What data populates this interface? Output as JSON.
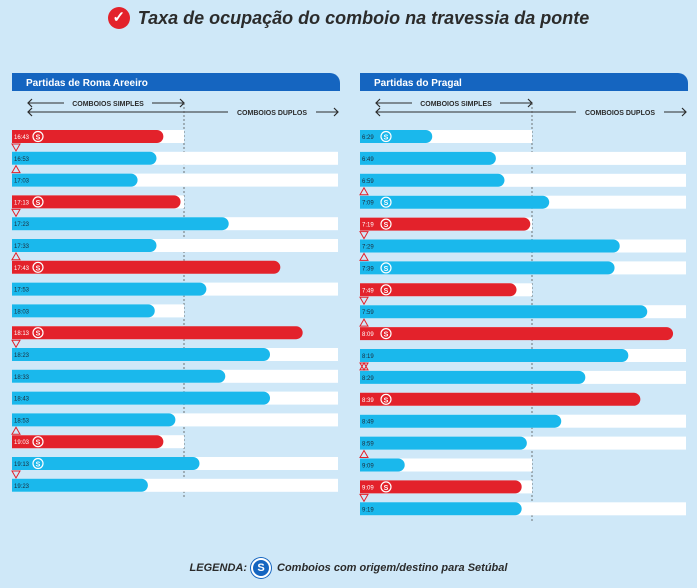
{
  "title": "Taxa de ocupação do comboio na travessia da ponte",
  "legend": {
    "label": "LEGENDA:",
    "text": "Comboios com origem/destino para Setúbal"
  },
  "colors": {
    "background": "#cfe8f8",
    "header": "#1565c0",
    "cyan": "#1ab8ec",
    "red": "#e3222b",
    "track": "#ffffff"
  },
  "chart_data": [
    {
      "type": "bar",
      "title": "Partidas de Roma Areeiro",
      "annotations": {
        "simple": "COMBOIOS SIMPLES",
        "double": "COMBOIOS DUPLOS"
      },
      "categories": [
        "16:43",
        "16:53",
        "17:03",
        "17:13",
        "17:23",
        "17:33",
        "17:43",
        "17:53",
        "18:03",
        "18:13",
        "18:23",
        "18:33",
        "18:43",
        "18:53",
        "19:03",
        "19:13",
        "19:23"
      ],
      "values": [
        0.88,
        0.84,
        0.73,
        0.98,
        1.26,
        0.84,
        1.56,
        1.13,
        0.83,
        1.69,
        1.5,
        1.24,
        1.5,
        0.95,
        0.88,
        1.09,
        0.79
      ],
      "capacity": [
        1,
        2,
        2,
        1,
        2,
        2,
        1,
        2,
        1,
        1,
        2,
        2,
        2,
        2,
        1,
        2,
        2
      ],
      "overload": [
        true,
        false,
        false,
        true,
        false,
        false,
        true,
        false,
        false,
        true,
        false,
        false,
        false,
        false,
        true,
        false,
        false
      ],
      "setubal": [
        true,
        false,
        false,
        true,
        false,
        false,
        true,
        false,
        false,
        true,
        false,
        false,
        false,
        false,
        true,
        true,
        false
      ],
      "arrow_up": [
        false,
        false,
        true,
        false,
        false,
        false,
        true,
        false,
        false,
        false,
        false,
        false,
        false,
        false,
        true,
        false,
        false
      ],
      "arrow_down": [
        true,
        false,
        false,
        true,
        false,
        false,
        false,
        false,
        false,
        true,
        false,
        false,
        false,
        false,
        false,
        true,
        false
      ],
      "xlim": [
        0,
        2
      ],
      "simple_capacity": 1
    },
    {
      "type": "bar",
      "title": "Partidas do Pragal",
      "annotations": {
        "simple": "COMBOIOS SIMPLES",
        "double": "COMBOIOS DUPLOS"
      },
      "categories": [
        "6:29",
        "6:49",
        "6:59",
        "7:09",
        "7:19",
        "7:29",
        "7:39",
        "7:49",
        "7:59",
        "8:09",
        "8:19",
        "8:29",
        "8:39",
        "8:49",
        "8:59",
        "9:09",
        "9:09",
        "9:19"
      ],
      "values": [
        0.42,
        0.79,
        0.84,
        1.1,
        0.99,
        1.51,
        1.48,
        0.91,
        1.67,
        1.82,
        1.56,
        1.31,
        1.63,
        1.17,
        0.97,
        0.26,
        0.94,
        0.94
      ],
      "capacity": [
        1,
        2,
        2,
        2,
        1,
        2,
        2,
        1,
        2,
        1,
        2,
        2,
        1,
        2,
        2,
        1,
        1,
        2
      ],
      "overload": [
        false,
        false,
        false,
        false,
        true,
        false,
        false,
        true,
        false,
        true,
        false,
        false,
        true,
        false,
        false,
        false,
        true,
        false
      ],
      "setubal": [
        true,
        false,
        false,
        true,
        true,
        false,
        true,
        true,
        false,
        true,
        false,
        false,
        true,
        false,
        false,
        false,
        true,
        false
      ],
      "arrow_up": [
        false,
        false,
        false,
        true,
        false,
        false,
        true,
        false,
        false,
        true,
        false,
        true,
        false,
        false,
        false,
        true,
        false,
        false
      ],
      "arrow_down": [
        false,
        false,
        false,
        false,
        true,
        false,
        false,
        true,
        false,
        false,
        true,
        false,
        false,
        false,
        false,
        false,
        true,
        false
      ],
      "xlim": [
        0,
        2
      ],
      "simple_capacity": 1
    }
  ]
}
